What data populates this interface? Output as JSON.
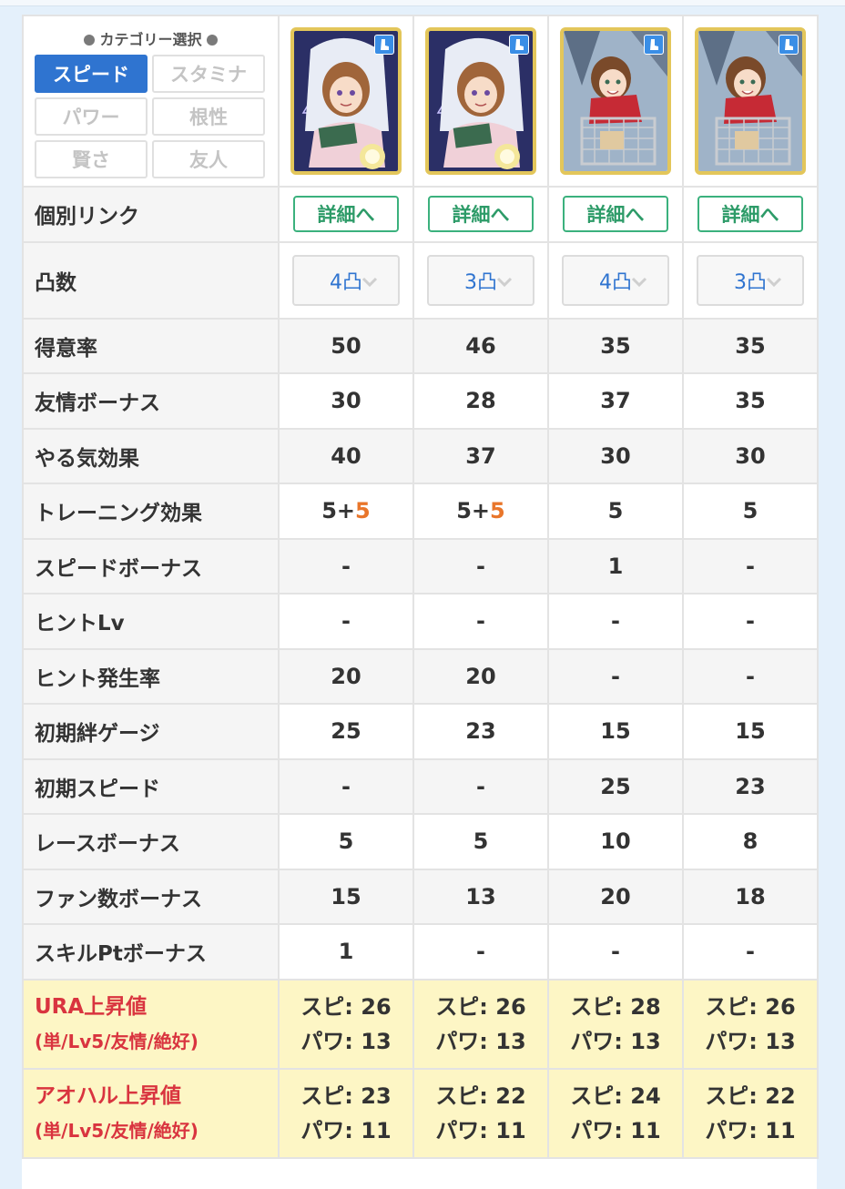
{
  "category": {
    "title": "カテゴリー選択",
    "buttons": [
      {
        "label": "スピード",
        "active": true
      },
      {
        "label": "スタミナ",
        "active": false
      },
      {
        "label": "パワー",
        "active": false
      },
      {
        "label": "根性",
        "active": false
      },
      {
        "label": "賢さ",
        "active": false
      },
      {
        "label": "友人",
        "active": false
      }
    ]
  },
  "cards": [
    {
      "name": "card-1",
      "art": "girl-book-night",
      "type_icon": "boot-icon"
    },
    {
      "name": "card-2",
      "art": "girl-book-night",
      "type_icon": "boot-icon"
    },
    {
      "name": "card-3",
      "art": "girl-cart",
      "type_icon": "boot-icon"
    },
    {
      "name": "card-4",
      "art": "girl-cart",
      "type_icon": "boot-icon"
    }
  ],
  "link_row": {
    "label": "個別リンク",
    "button": "詳細へ"
  },
  "limit_row": {
    "label": "凸数",
    "values": [
      "4凸",
      "3凸",
      "4凸",
      "3凸"
    ]
  },
  "stats": [
    {
      "label": "得意率",
      "values": [
        "50",
        "46",
        "35",
        "35"
      ]
    },
    {
      "label": "友情ボーナス",
      "values": [
        "30",
        "28",
        "37",
        "35"
      ],
      "highlight": [
        false,
        false,
        true,
        true
      ]
    },
    {
      "label": "やる気効果",
      "values": [
        "40",
        "37",
        "30",
        "30"
      ]
    },
    {
      "label": "トレーニング効果",
      "values": [
        "5+",
        "5+",
        "5",
        "5"
      ],
      "extra": [
        "5",
        "5",
        "",
        ""
      ]
    },
    {
      "label": "スピードボーナス",
      "values": [
        "-",
        "-",
        "1",
        "-"
      ]
    },
    {
      "label": "ヒントLv",
      "values": [
        "-",
        "-",
        "-",
        "-"
      ]
    },
    {
      "label": "ヒント発生率",
      "values": [
        "20",
        "20",
        "-",
        "-"
      ],
      "highlight": [
        true,
        true,
        false,
        false
      ]
    },
    {
      "label": "初期絆ゲージ",
      "values": [
        "25",
        "23",
        "15",
        "15"
      ],
      "highlight": [
        false,
        false,
        true,
        true
      ]
    },
    {
      "label": "初期スピード",
      "values": [
        "-",
        "-",
        "25",
        "23"
      ]
    },
    {
      "label": "レースボーナス",
      "values": [
        "5",
        "5",
        "10",
        "8"
      ]
    },
    {
      "label": "ファン数ボーナス",
      "values": [
        "15",
        "13",
        "20",
        "18"
      ]
    },
    {
      "label": "スキルPtボーナス",
      "values": [
        "1",
        "-",
        "-",
        "-"
      ]
    }
  ],
  "ura": {
    "label1": "URA上昇値",
    "label2": "(単/Lv5/友情/絶好)",
    "values": [
      [
        "スピ: 26",
        "パワ: 13"
      ],
      [
        "スピ: 26",
        "パワ: 13"
      ],
      [
        "スピ: 28",
        "パワ: 13"
      ],
      [
        "スピ: 26",
        "パワ: 13"
      ]
    ]
  },
  "aoharu": {
    "label1": "アオハル上昇値",
    "label2": "(単/Lv5/友情/絶好)",
    "values": [
      [
        "スピ: 23",
        "パワ: 11"
      ],
      [
        "スピ: 22",
        "パワ: 11"
      ],
      [
        "スピ: 24",
        "パワ: 11"
      ],
      [
        "スピ: 22",
        "パワ: 11"
      ]
    ]
  },
  "colors": {
    "accent": "#2f74d0",
    "link": "#2d9b68",
    "highlight": "#e9762b",
    "yellow_label": "#d9343f"
  }
}
